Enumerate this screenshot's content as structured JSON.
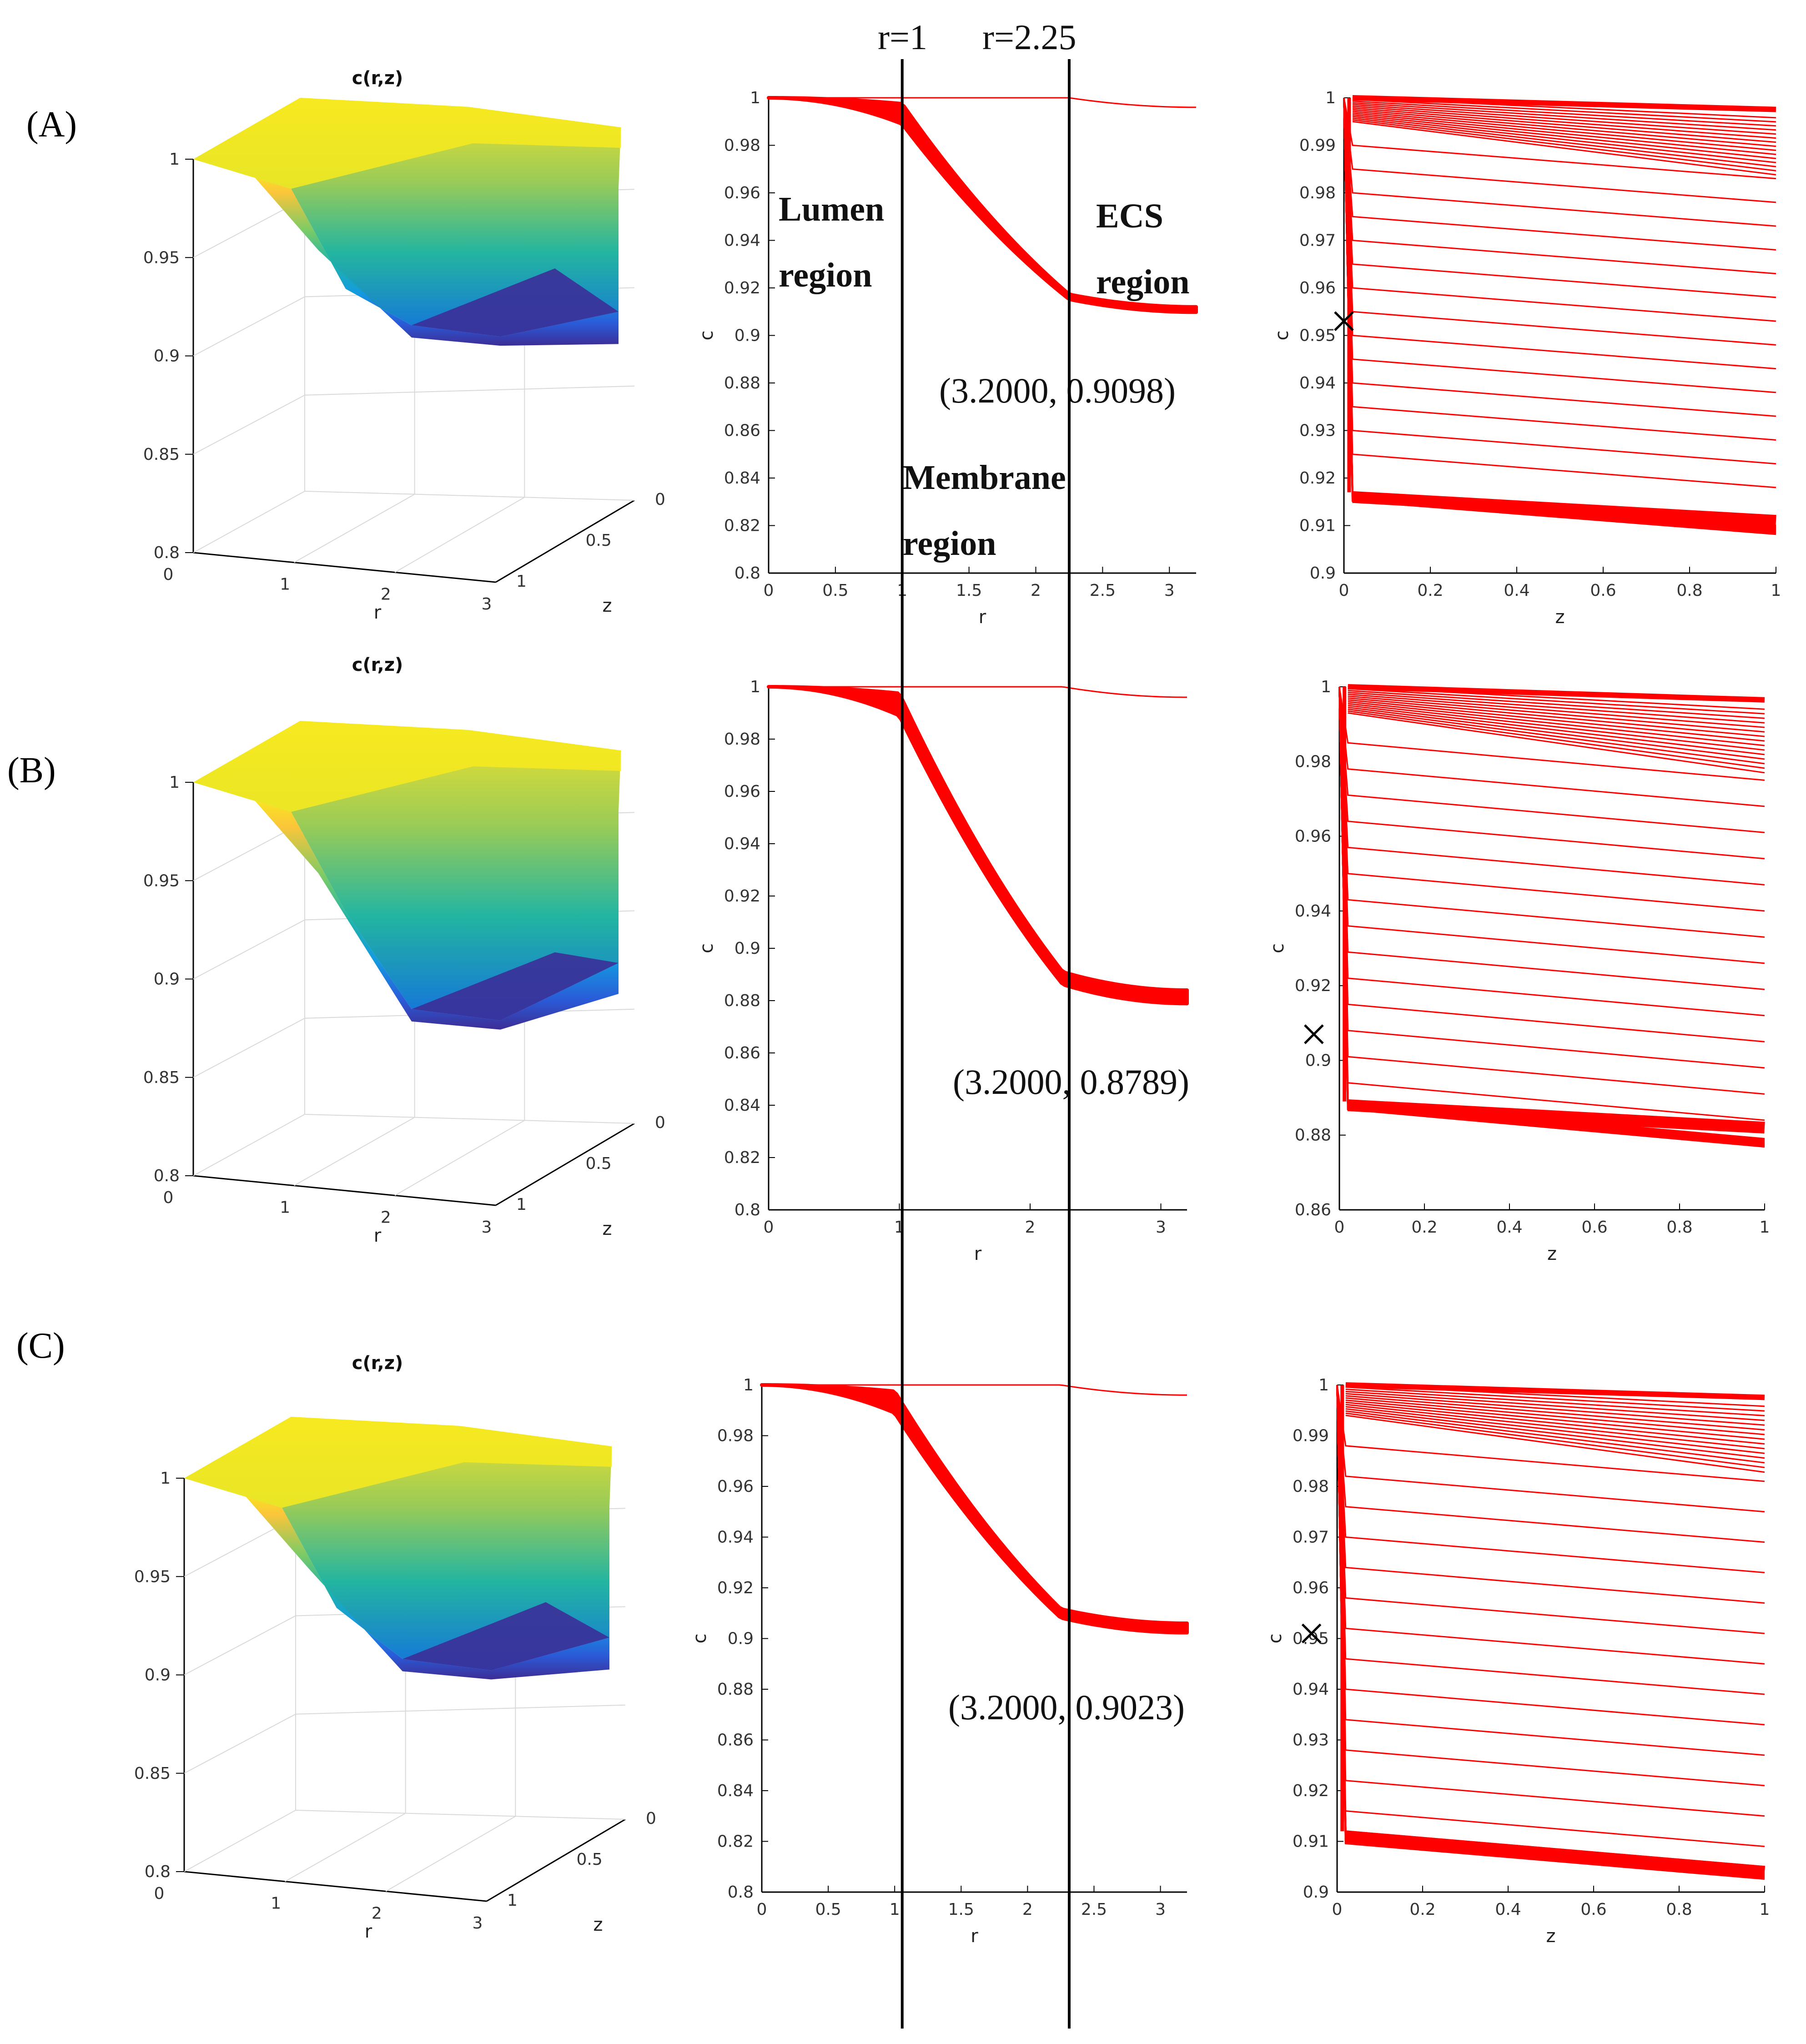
{
  "figure": {
    "top_labels": [
      "r=1",
      "r=2.25"
    ],
    "region_labels": {
      "lumen": [
        "Lumen",
        "region"
      ],
      "ecs": [
        "ECS",
        "region"
      ],
      "membrane": [
        "Membrane",
        "region"
      ]
    },
    "boundaries_r": [
      1,
      2.25
    ],
    "colors": {
      "curve": "#ff0000",
      "axis": "#000000",
      "grid": "#d9d9d9",
      "line": "#000000"
    }
  },
  "chart_data": [
    {
      "panel": "(A)",
      "type": "surface3d",
      "title": "c(r,z)",
      "xlabel": "r",
      "ylabel": "z",
      "zticks": [
        "0.8",
        "0.85",
        "0.9",
        "0.95",
        "1"
      ],
      "rticks": [
        "0",
        "1",
        "2",
        "3"
      ],
      "zdticks": [
        "0",
        "0.5",
        "1"
      ],
      "zlim": [
        0.8,
        1
      ],
      "min_value": 0.9098
    },
    {
      "panel": "(A)",
      "type": "line",
      "xlabel": "r",
      "ylabel": "c",
      "xlim": [
        0,
        3.2
      ],
      "ylim": [
        0.8,
        1
      ],
      "xticks": [
        "0",
        "0.5",
        "1",
        "1.5",
        "2",
        "2.5",
        "3"
      ],
      "yticks": [
        "0.8",
        "0.82",
        "0.84",
        "0.86",
        "0.88",
        "0.9",
        "0.92",
        "0.94",
        "0.96",
        "0.98",
        "1"
      ],
      "band_min_end": 0.9098,
      "band_max_end": 0.912,
      "annotation": "(3.2000, 0.9098)"
    },
    {
      "panel": "(A)",
      "type": "line",
      "xlabel": "z",
      "ylabel": "c",
      "xlim": [
        0,
        1
      ],
      "ylim": [
        0.9,
        1
      ],
      "xticks": [
        "0",
        "0.2",
        "0.4",
        "0.6",
        "0.8",
        "1"
      ],
      "yticks": [
        "0.9",
        "0.91",
        "0.92",
        "0.93",
        "0.94",
        "0.95",
        "0.96",
        "0.97",
        "0.98",
        "0.99",
        "1"
      ],
      "top_values": [
        1.0,
        0.995
      ],
      "mid_values": [
        0.99,
        0.985,
        0.98,
        0.975,
        0.97,
        0.965,
        0.96,
        0.955,
        0.95,
        0.945,
        0.94,
        0.935,
        0.93,
        0.925
      ],
      "bottom_values": [
        0.917,
        0.911
      ],
      "drop_per_unit_z": 0.007,
      "marker": [
        0.0,
        0.953
      ]
    },
    {
      "panel": "(B)",
      "type": "surface3d",
      "title": "c(r,z)",
      "xlabel": "r",
      "ylabel": "z",
      "zticks": [
        "0.8",
        "0.85",
        "0.9",
        "0.95",
        "1"
      ],
      "rticks": [
        "0",
        "1",
        "2",
        "3"
      ],
      "zdticks": [
        "0",
        "0.5",
        "1"
      ],
      "zlim": [
        0.8,
        1
      ],
      "min_value": 0.8789
    },
    {
      "panel": "(B)",
      "type": "line",
      "xlabel": "r",
      "ylabel": "c",
      "xlim": [
        0,
        3.2
      ],
      "ylim": [
        0.8,
        1
      ],
      "xticks": [
        "0",
        "1",
        "2",
        "3"
      ],
      "yticks": [
        "0.8",
        "0.82",
        "0.84",
        "0.86",
        "0.88",
        "0.9",
        "0.92",
        "0.94",
        "0.96",
        "0.98",
        "1"
      ],
      "band_min_end": 0.8789,
      "band_max_end": 0.884,
      "annotation": "(3.2000, 0.8789)"
    },
    {
      "panel": "(B)",
      "type": "line",
      "xlabel": "z",
      "ylabel": "c",
      "xlim": [
        0,
        1
      ],
      "ylim": [
        0.86,
        1
      ],
      "xticks": [
        "0",
        "0.2",
        "0.4",
        "0.6",
        "0.8",
        "1"
      ],
      "yticks": [
        "0.86",
        "0.88",
        "0.9",
        "0.92",
        "0.94",
        "0.96",
        "0.98",
        "1"
      ],
      "top_values": [
        1.0,
        0.993
      ],
      "mid_values": [
        0.985,
        0.978,
        0.971,
        0.964,
        0.957,
        0.95,
        0.943,
        0.936,
        0.929,
        0.922,
        0.915,
        0.908,
        0.901,
        0.894
      ],
      "bottom_values": [
        0.889,
        0.882
      ],
      "drop_per_unit_z": 0.01,
      "marker": [
        -0.06,
        0.907
      ]
    },
    {
      "panel": "(C)",
      "type": "surface3d",
      "title": "c(r,z)",
      "xlabel": "r",
      "ylabel": "z",
      "zticks": [
        "0.8",
        "0.85",
        "0.9",
        "0.95",
        "1"
      ],
      "rticks": [
        "0",
        "1",
        "2",
        "3"
      ],
      "zdticks": [
        "0",
        "0.5",
        "1"
      ],
      "zlim": [
        0.8,
        1
      ],
      "min_value": 0.9023
    },
    {
      "panel": "(C)",
      "type": "line",
      "xlabel": "r",
      "ylabel": "c",
      "xlim": [
        0,
        3.2
      ],
      "ylim": [
        0.8,
        1
      ],
      "xticks": [
        "0",
        "0.5",
        "1",
        "1.5",
        "2",
        "2.5",
        "3"
      ],
      "yticks": [
        "0.8",
        "0.82",
        "0.84",
        "0.86",
        "0.88",
        "0.9",
        "0.92",
        "0.94",
        "0.96",
        "0.98",
        "1"
      ],
      "band_min_end": 0.9023,
      "band_max_end": 0.906,
      "annotation": "(3.2000, 0.9023)"
    },
    {
      "panel": "(C)",
      "type": "line",
      "xlabel": "z",
      "ylabel": "c",
      "xlim": [
        0,
        1
      ],
      "ylim": [
        0.9,
        1
      ],
      "xticks": [
        "0",
        "0.2",
        "0.4",
        "0.6",
        "0.8",
        "1"
      ],
      "yticks": [
        "0.9",
        "0.91",
        "0.92",
        "0.93",
        "0.94",
        "0.95",
        "0.96",
        "0.97",
        "0.98",
        "0.99",
        "1"
      ],
      "top_values": [
        1.0,
        0.994
      ],
      "mid_values": [
        0.988,
        0.982,
        0.976,
        0.97,
        0.964,
        0.958,
        0.952,
        0.946,
        0.94,
        0.934,
        0.928,
        0.922,
        0.916
      ],
      "bottom_values": [
        0.912,
        0.904
      ],
      "drop_per_unit_z": 0.007,
      "marker": [
        -0.06,
        0.951
      ]
    }
  ]
}
